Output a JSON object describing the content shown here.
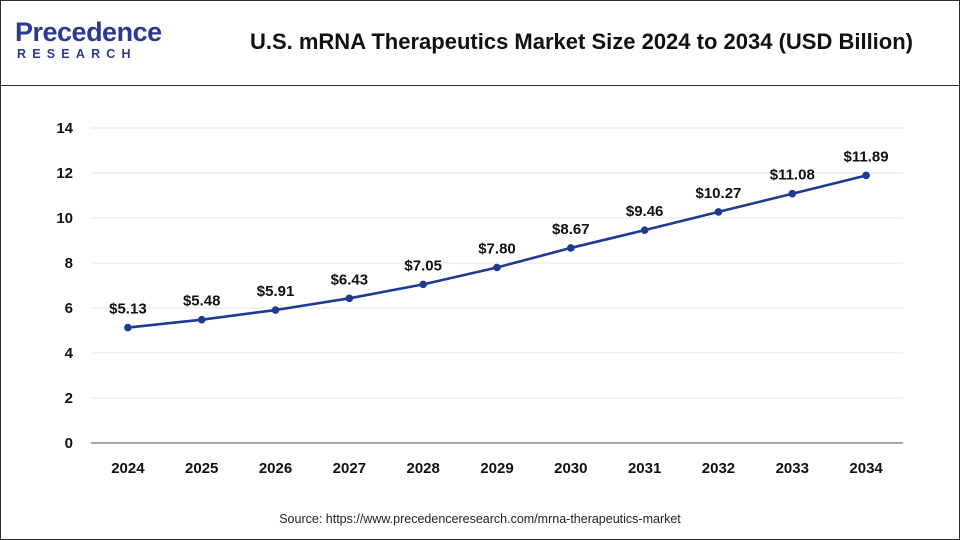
{
  "header": {
    "logo_word": "Precedence",
    "logo_sub": "RESEARCH",
    "title": "U.S. mRNA Therapeutics Market Size 2024 to 2034 (USD Billion)"
  },
  "footer": {
    "source": "Source: https://www.precedenceresearch.com/mrna-therapeutics-market"
  },
  "colors": {
    "series": "#1f3a93",
    "brand": "#2a3a8f",
    "grid": "#e6e6e6",
    "axis": "#888888"
  },
  "chart_data": {
    "type": "line",
    "title": "U.S. mRNA Therapeutics Market Size 2024 to 2034 (USD Billion)",
    "x": [
      "2024",
      "2025",
      "2026",
      "2027",
      "2028",
      "2029",
      "2030",
      "2031",
      "2032",
      "2033",
      "2034"
    ],
    "values": [
      5.13,
      5.48,
      5.91,
      6.43,
      7.05,
      7.8,
      8.67,
      9.46,
      10.27,
      11.08,
      11.89
    ],
    "data_labels": [
      "$5.13",
      "$5.48",
      "$5.91",
      "$6.43",
      "$7.05",
      "$7.80",
      "$8.67",
      "$9.46",
      "$10.27",
      "$11.08",
      "$11.89"
    ],
    "ylim": [
      0,
      14
    ],
    "yticks": [
      0,
      2,
      4,
      6,
      8,
      10,
      12,
      14
    ],
    "xlabel": "",
    "ylabel": "",
    "grid": true,
    "legend": "none"
  }
}
